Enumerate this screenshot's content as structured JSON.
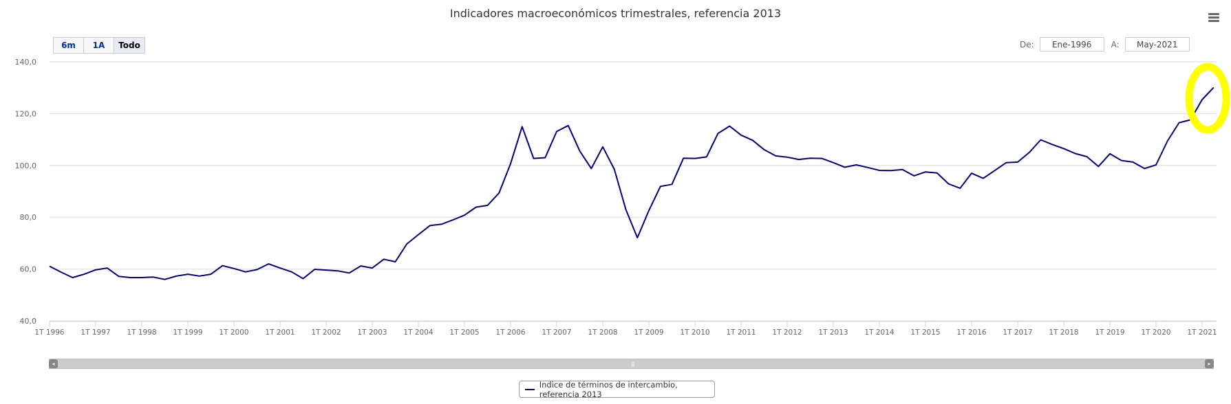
{
  "header": {
    "title": "Indicadores macroeconómicos trimestrales, referencia 2013",
    "menu_icon": "hamburger-menu-icon"
  },
  "range_selector": {
    "buttons": [
      "6m",
      "1A",
      "Todo"
    ],
    "selected": "Todo"
  },
  "date_inputs": {
    "from_label": "De:",
    "from_value": "Ene-1996",
    "to_label": "A:",
    "to_value": "May-2021"
  },
  "colors": {
    "series": "#000080",
    "grid": "#e6e6e6",
    "highlight": "#ffff00"
  },
  "chart_data": {
    "type": "line",
    "title": "Indicadores macroeconómicos trimestrales, referencia 2013",
    "xlabel": "",
    "ylabel": "",
    "ylim": [
      40,
      140
    ],
    "yticks": [
      "40,0",
      "60,0",
      "80,0",
      "100,0",
      "120,0",
      "140,0"
    ],
    "ytick_values": [
      40,
      60,
      80,
      100,
      120,
      140
    ],
    "xticks": [
      "1T 1996",
      "1T 1997",
      "1T 1998",
      "1T 1999",
      "1T 2000",
      "1T 2001",
      "1T 2002",
      "1T 2003",
      "1T 2004",
      "1T 2005",
      "1T 2006",
      "1T 2007",
      "1T 2008",
      "1T 2009",
      "1T 2010",
      "1T 2011",
      "1T 2012",
      "1T 2013",
      "1T 2014",
      "1T 2015",
      "1T 2016",
      "1T 2017",
      "1T 2018",
      "1T 2019",
      "1T 2020",
      "1T 2021"
    ],
    "x_start": "1T 1996",
    "frequency": "quarterly",
    "grid": true,
    "legend_position": "bottom-center",
    "series": [
      {
        "name": "Indice de términos de intercambio, referencia 2013",
        "values": [
          61.1,
          58.8,
          56.7,
          58.0,
          59.7,
          60.4,
          57.2,
          56.7,
          56.7,
          56.9,
          56.0,
          57.3,
          58.0,
          57.3,
          58.0,
          61.3,
          60.2,
          58.9,
          59.8,
          62.0,
          60.4,
          58.9,
          56.3,
          59.9,
          59.6,
          59.3,
          58.5,
          61.2,
          60.4,
          63.8,
          62.8,
          69.7,
          73.3,
          76.8,
          77.3,
          79.0,
          80.8,
          83.9,
          84.6,
          89.4,
          100.7,
          115.0,
          102.7,
          103.0,
          113.1,
          115.4,
          105.6,
          98.8,
          107.2,
          98.5,
          83.0,
          72.1,
          82.6,
          91.9,
          92.7,
          102.8,
          102.7,
          103.3,
          112.4,
          115.2,
          111.7,
          109.7,
          106.1,
          103.7,
          103.2,
          102.3,
          102.8,
          102.7,
          101.1,
          99.3,
          100.2,
          99.2,
          98.1,
          98.0,
          98.4,
          96.0,
          97.5,
          97.1,
          92.9,
          91.2,
          97.0,
          95.0,
          98.0,
          101.1,
          101.3,
          105.0,
          109.9,
          108.1,
          106.5,
          104.6,
          103.4,
          99.6,
          104.5,
          101.9,
          101.3,
          98.8,
          100.2,
          109.5,
          116.5,
          117.6,
          125.4,
          130.1
        ]
      }
    ],
    "annotation": "hand-drawn yellow circle around last two quarters"
  },
  "navigator": {
    "grip_icon": "scrollbar-grip-icon",
    "left_icon": "arrow-left-icon",
    "right_icon": "arrow-right-icon"
  }
}
